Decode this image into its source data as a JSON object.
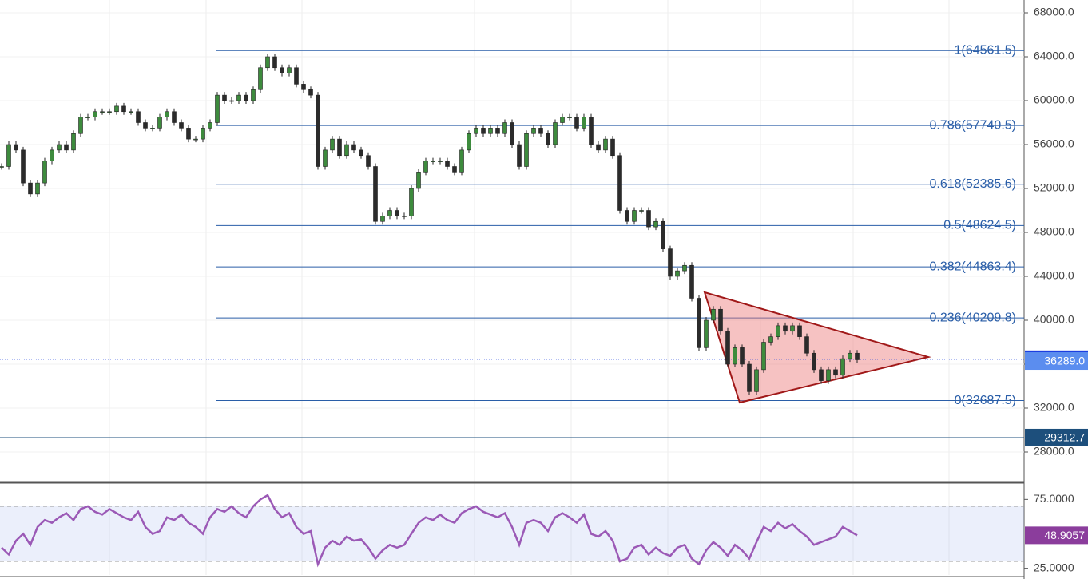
{
  "chart_data": [
    {
      "type": "candlestick",
      "up_color": "#3d8b3d",
      "down_color": "#2b2b2b",
      "values": [
        54000,
        56000,
        55500,
        52500,
        51500,
        52500,
        54500,
        55500,
        56000,
        55500,
        57000,
        58500,
        58500,
        59000,
        59000,
        59000,
        59500,
        59000,
        59000,
        58000,
        57500,
        57500,
        58500,
        59000,
        58000,
        57500,
        56500,
        56500,
        57500,
        58000,
        60500,
        60000,
        60000,
        60500,
        60000,
        61000,
        63000,
        64000,
        63000,
        62500,
        63000,
        61500,
        61000,
        60500,
        54000,
        55500,
        56500,
        55000,
        56000,
        55500,
        55000,
        54000,
        49000,
        49500,
        50000,
        49500,
        49500,
        52000,
        53500,
        54500,
        54500,
        54500,
        54000,
        53500,
        55500,
        57000,
        57500,
        57000,
        57500,
        57000,
        58000,
        56000,
        54000,
        57000,
        57500,
        57000,
        56000,
        58000,
        58500,
        58500,
        57500,
        58500,
        56000,
        55500,
        56500,
        55000,
        50000,
        49000,
        50000,
        50000,
        48500,
        49000,
        46500,
        44000,
        44500,
        45000,
        42000,
        37500,
        40000,
        41000,
        39000,
        36000,
        37500,
        36000,
        33500,
        35500,
        38000,
        38500,
        39500,
        39000,
        39500,
        38500,
        37000,
        35500,
        34500,
        35500,
        35000,
        36500,
        37000,
        36400
      ],
      "ylim": [
        25527,
        69164
      ],
      "yticks": [
        {
          "value": 28000,
          "label": "28000.0"
        },
        {
          "value": 32000,
          "label": "32000.0"
        },
        {
          "value": 36000,
          "label": "36000.0"
        },
        {
          "value": 40000,
          "label": "40000.0"
        },
        {
          "value": 44000,
          "label": "44000.0"
        },
        {
          "value": 48000,
          "label": "48000.0"
        },
        {
          "value": 52000,
          "label": "52000.0"
        },
        {
          "value": 56000,
          "label": "56000.0"
        },
        {
          "value": 60000,
          "label": "60000.0"
        },
        {
          "value": 64000,
          "label": "64000.0"
        },
        {
          "value": 68000,
          "label": "68000.0"
        }
      ],
      "levels": [
        {
          "label": "1(64561.5)",
          "value": 64561.5
        },
        {
          "label": "0.786(57740.5)",
          "value": 57740.5
        },
        {
          "label": "0.618(52385.6)",
          "value": 52385.6
        },
        {
          "label": "0.5(48624.5)",
          "value": 48624.5
        },
        {
          "label": "0.382(44863.4)",
          "value": 44863.4
        },
        {
          "label": "0.236(40209.8)",
          "value": 40209.8
        },
        {
          "label": "0(32687.5)",
          "value": 32687.5
        }
      ],
      "level_color": "#2a5ea8",
      "last_price": 36448.4,
      "previous_close": {
        "value": 36289,
        "label": "36289.0"
      },
      "horizontal_line": 29312.7
    },
    {
      "type": "line",
      "color": "#9b59b6",
      "values": [
        40,
        35,
        45,
        50,
        42,
        55,
        60,
        58,
        62,
        65,
        60,
        68,
        70,
        66,
        64,
        68,
        65,
        62,
        60,
        66,
        55,
        50,
        52,
        62,
        60,
        64,
        58,
        55,
        50,
        62,
        68,
        66,
        70,
        65,
        62,
        70,
        75,
        78,
        68,
        62,
        65,
        55,
        50,
        52,
        28,
        40,
        45,
        42,
        48,
        45,
        46,
        40,
        32,
        38,
        42,
        40,
        42,
        50,
        58,
        62,
        60,
        64,
        60,
        58,
        65,
        68,
        70,
        66,
        64,
        62,
        65,
        55,
        42,
        58,
        60,
        58,
        52,
        62,
        65,
        62,
        58,
        64,
        50,
        48,
        52,
        45,
        30,
        32,
        40,
        42,
        35,
        40,
        36,
        34,
        40,
        42,
        32,
        28,
        38,
        44,
        40,
        34,
        42,
        38,
        32,
        44,
        55,
        52,
        58,
        54,
        57,
        52,
        48,
        42,
        44,
        46,
        48,
        55,
        52,
        48.9057
      ],
      "ylim": [
        19,
        86.2
      ],
      "yticks": [
        {
          "value": 25,
          "label": "25.0000"
        },
        {
          "value": 75,
          "label": "75.0000"
        }
      ],
      "band": [
        30,
        70
      ],
      "last": 48.9057
    }
  ]
}
